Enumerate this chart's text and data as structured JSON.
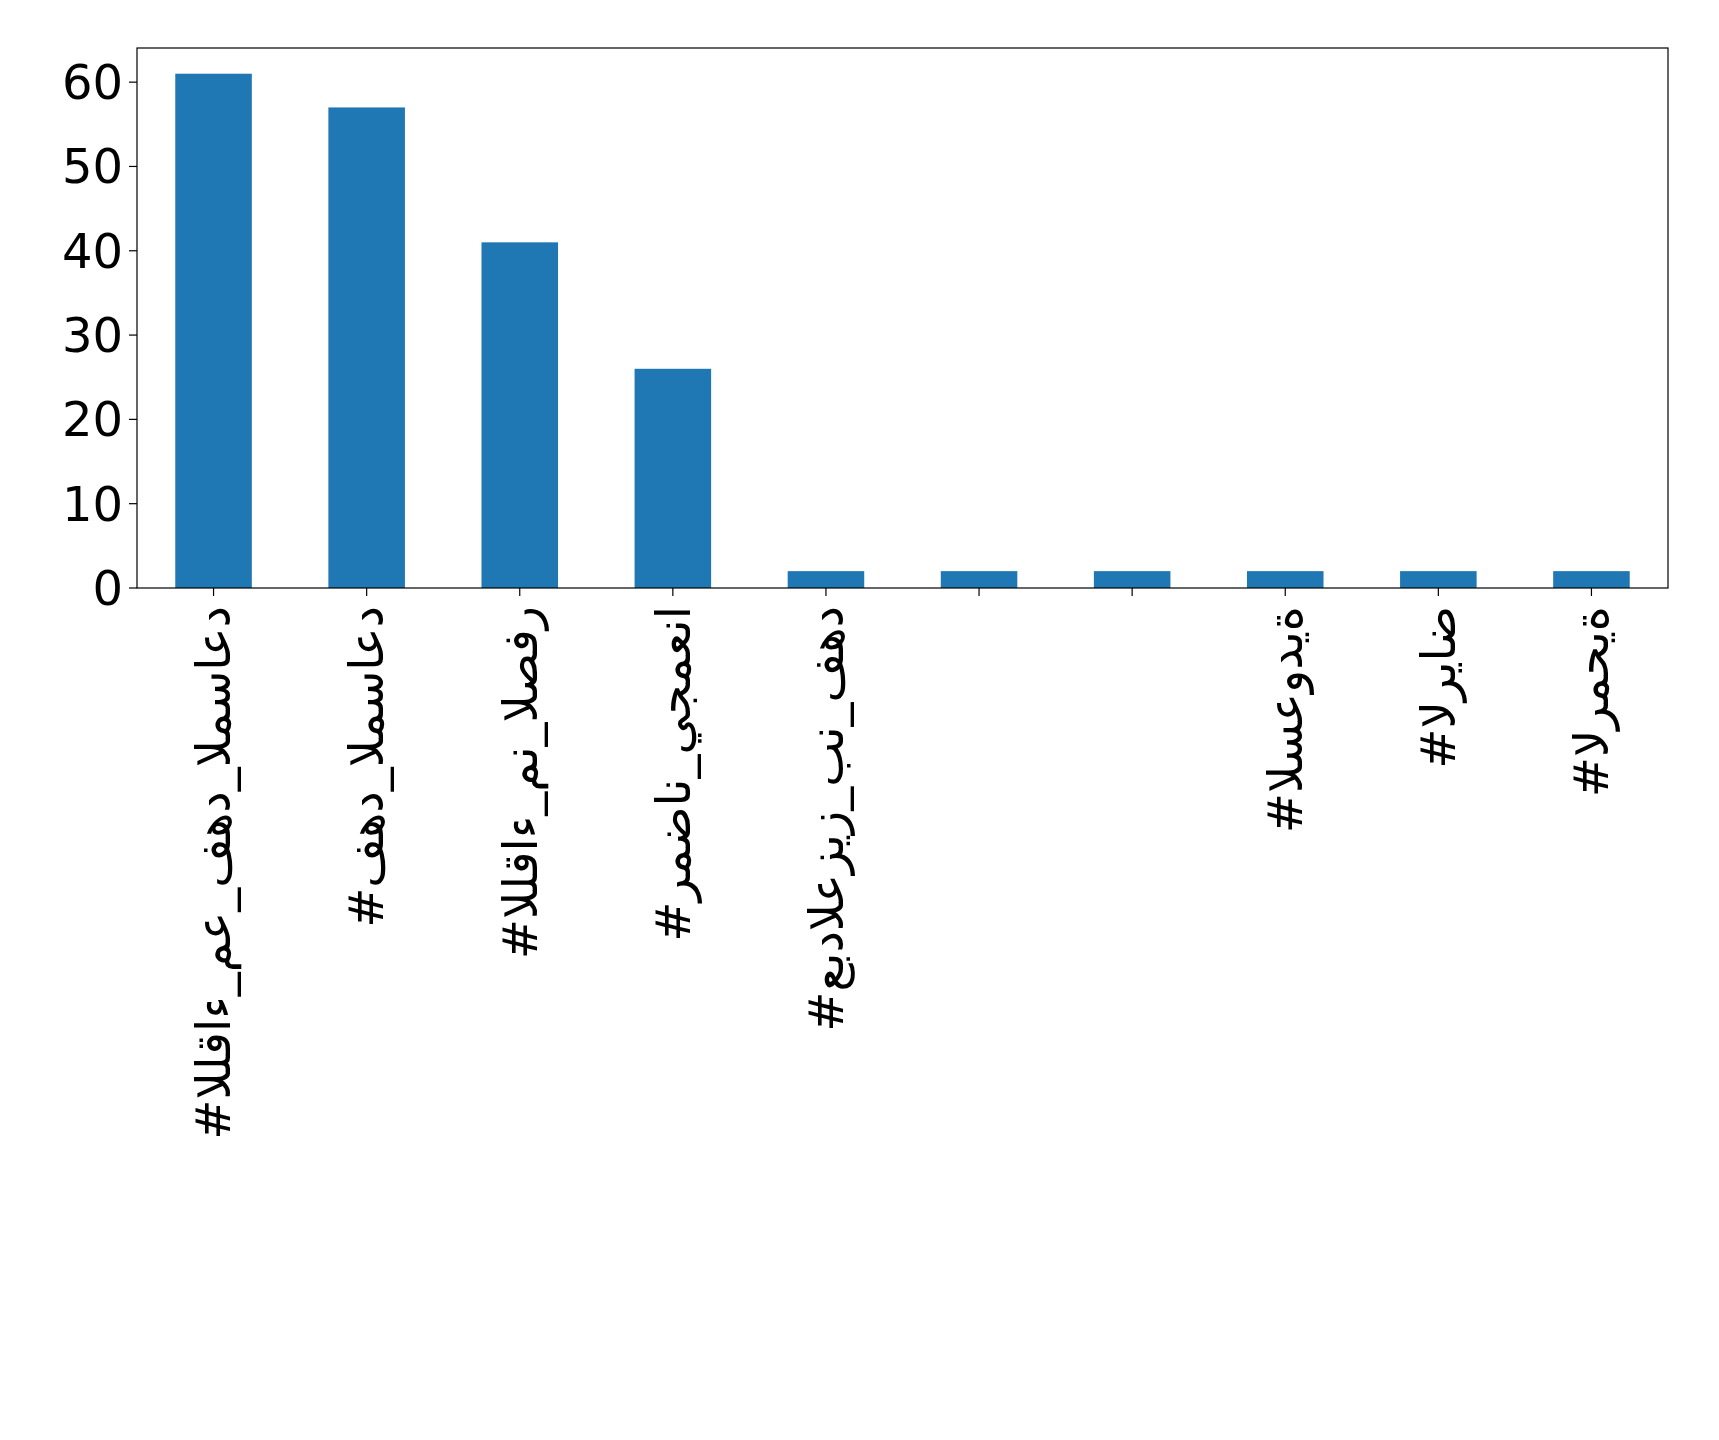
{
  "chart_data": {
    "type": "bar",
    "categories": [
      "#اللقاء_مع_فهد_المساعد",
      "#فهد_المساعد",
      "#اللقاء_من_الصفر",
      "#رمضان_يجمعنا",
      "#عبدالعزيز_بن_فهد",
      null,
      null,
      "#السعودية",
      "#الرياض",
      "#الرمحية"
    ],
    "values": [
      61,
      57,
      41,
      26,
      2,
      2,
      2,
      2,
      2,
      2
    ],
    "color": "#1f77b4",
    "ylim": [
      0,
      64.05
    ],
    "yticks": [
      0,
      10,
      20,
      30,
      40,
      50,
      60
    ],
    "grid": false
  }
}
